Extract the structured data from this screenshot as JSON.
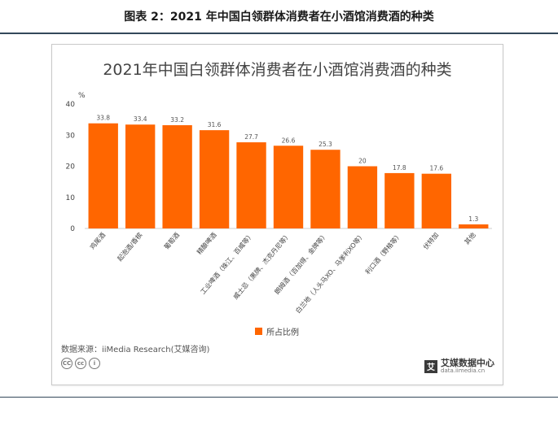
{
  "figure_caption": "图表 2：2021 年中国白领群体消费者在小酒馆消费酒的种类",
  "source_text": "数据来源：iiMedia Research(艾媒咨询)",
  "brand": {
    "name": "艾媒数据中心",
    "url": "data.iimedia.cn",
    "mark": "艾"
  },
  "license_icons": [
    "CC",
    "cc",
    "i"
  ],
  "chart_data": {
    "type": "bar",
    "title": "2021年中国白领群体消费者在小酒馆消费酒的种类",
    "unit": "%",
    "categories": [
      "鸡尾酒",
      "起泡酒/香槟",
      "葡萄酒",
      "精酿啤酒",
      "工业啤酒（珠江、百威等）",
      "威士忌（黑牌、杰克丹尼等）",
      "朗姆酒（百加得、金牌等）",
      "白兰地（人头马XO、马爹利XO等）",
      "利口酒（野格等）",
      "伏特加",
      "其他"
    ],
    "series": [
      {
        "name": "所占比例",
        "values": [
          33.8,
          33.4,
          33.2,
          31.6,
          27.7,
          26.6,
          25.3,
          20,
          17.8,
          17.6,
          1.3
        ]
      }
    ],
    "value_labels": [
      "33.8",
      "33.4",
      "33.2",
      "31.6",
      "27.7",
      "26.6",
      "25.3",
      "20",
      "17.8",
      "17.6",
      "1.3"
    ],
    "yticks": [
      0,
      10,
      20,
      30,
      40
    ],
    "ylim": [
      0,
      40
    ],
    "color": "#ff6600",
    "grid": false,
    "legend_position": "bottom-center"
  }
}
